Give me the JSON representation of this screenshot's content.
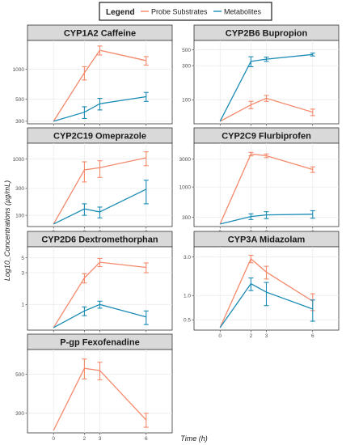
{
  "legend": {
    "title": "Legend",
    "items": [
      {
        "label": "Probe Substrates",
        "color": "#F4896B"
      },
      {
        "label": "Metabolites",
        "color": "#1A8BB5"
      }
    ]
  },
  "axes": {
    "xlabel": "Time (h)",
    "ylabel": "Log10_Concentrations (µg/mL)"
  },
  "chart_data": [
    {
      "type": "line",
      "title": "CYP1A2 Caffeine",
      "x_ticks": [
        "0",
        "2",
        "3",
        "6"
      ],
      "yscale": "log",
      "ylim": [
        300,
        1700
      ],
      "y_ticks": [
        300,
        500,
        1000
      ],
      "series": [
        {
          "name": "Probe Substrates",
          "color": "#F4896B",
          "y": [
            300,
            920,
            1550,
            1220
          ],
          "err": [
            null,
            140,
            160,
            120
          ]
        },
        {
          "name": "Metabolites",
          "color": "#1A8BB5",
          "y": [
            300,
            370,
            450,
            530
          ],
          "err": [
            null,
            50,
            60,
            55
          ]
        }
      ]
    },
    {
      "type": "line",
      "title": "CYP2B6 Bupropion",
      "x_ticks": [
        "0",
        "2",
        "3",
        "6"
      ],
      "yscale": "log",
      "ylim": [
        50,
        560
      ],
      "y_ticks": [
        100,
        300,
        500
      ],
      "series": [
        {
          "name": "Probe Substrates",
          "color": "#F4896B",
          "y": [
            50,
            85,
            105,
            67
          ],
          "err": [
            null,
            10,
            10,
            7
          ]
        },
        {
          "name": "Metabolites",
          "color": "#1A8BB5",
          "y": [
            50,
            345,
            370,
            430
          ],
          "err": [
            null,
            55,
            25,
            20
          ]
        }
      ]
    },
    {
      "type": "line",
      "title": "CYP2C19 Omeprazole",
      "x_ticks": [
        "0",
        "2",
        "3",
        "6"
      ],
      "yscale": "log",
      "ylim": [
        70,
        1500
      ],
      "y_ticks": [
        100,
        300,
        1000
      ],
      "series": [
        {
          "name": "Probe Substrates",
          "color": "#F4896B",
          "y": [
            70,
            640,
            700,
            1050
          ],
          "err": [
            null,
            250,
            230,
            290
          ]
        },
        {
          "name": "Metabolites",
          "color": "#1A8BB5",
          "y": [
            70,
            130,
            115,
            290
          ],
          "err": [
            null,
            30,
            25,
            130
          ]
        }
      ]
    },
    {
      "type": "line",
      "title": "CYP2C9 Flurbiprofen",
      "x_ticks": [
        "0",
        "2",
        "3",
        "6"
      ],
      "yscale": "log",
      "ylim": [
        230,
        4500
      ],
      "y_ticks": [
        300,
        1000,
        3000
      ],
      "series": [
        {
          "name": "Probe Substrates",
          "color": "#F4896B",
          "y": [
            230,
            3700,
            3450,
            2000
          ],
          "err": [
            null,
            250,
            250,
            220
          ]
        },
        {
          "name": "Metabolites",
          "color": "#1A8BB5",
          "y": [
            230,
            310,
            330,
            340
          ],
          "err": [
            null,
            35,
            45,
            50
          ]
        }
      ]
    },
    {
      "type": "line",
      "title": "CYP2D6 Dextromethorphan",
      "x_ticks": [
        "0",
        "2",
        "3",
        "6"
      ],
      "yscale": "log",
      "ylim": [
        0.45,
        6
      ],
      "y_ticks": [
        1,
        3,
        5
      ],
      "series": [
        {
          "name": "Probe Substrates",
          "color": "#F4896B",
          "y": [
            0.45,
            2.5,
            4.3,
            3.6
          ],
          "err": [
            null,
            0.4,
            0.6,
            0.6
          ]
        },
        {
          "name": "Metabolites",
          "color": "#1A8BB5",
          "y": [
            0.45,
            0.8,
            1.0,
            0.65
          ],
          "err": [
            null,
            0.12,
            0.12,
            0.15
          ]
        }
      ]
    },
    {
      "type": "line",
      "title": "CYP3A Midazolam",
      "x_ticks": [
        "0",
        "2",
        "3",
        "6"
      ],
      "yscale": "log",
      "ylim": [
        0.4,
        3.4
      ],
      "y_ticks": [
        0.5,
        1.0,
        3.0
      ],
      "series": [
        {
          "name": "Probe Substrates",
          "color": "#F4896B",
          "y": [
            0.4,
            2.85,
            1.95,
            0.85
          ],
          "err": [
            null,
            0.3,
            0.35,
            0.2
          ]
        },
        {
          "name": "Metabolites",
          "color": "#1A8BB5",
          "y": [
            0.4,
            1.4,
            1.1,
            0.68
          ],
          "err": [
            null,
            0.25,
            0.35,
            0.2
          ]
        }
      ]
    },
    {
      "type": "line",
      "title": "P-gp Fexofenadine",
      "x_ticks": [
        "0",
        "2",
        "3",
        "6"
      ],
      "yscale": "log",
      "ylim": [
        240,
        640
      ],
      "y_ticks": [
        300,
        500
      ],
      "series": [
        {
          "name": "Probe Substrates",
          "color": "#F4896B",
          "y": [
            240,
            540,
            525,
            275
          ],
          "err": [
            null,
            70,
            60,
            25
          ]
        }
      ]
    }
  ]
}
